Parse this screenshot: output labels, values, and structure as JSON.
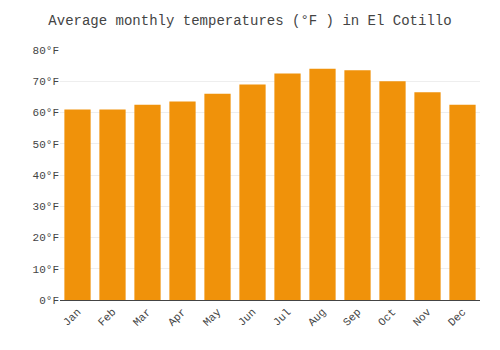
{
  "chart_data": {
    "type": "bar",
    "title": "Average monthly temperatures (°F ) in El Cotillo",
    "categories": [
      "Jan",
      "Feb",
      "Mar",
      "Apr",
      "May",
      "Jun",
      "Jul",
      "Aug",
      "Sep",
      "Oct",
      "Nov",
      "Dec"
    ],
    "values": [
      61,
      61,
      62.5,
      63.5,
      66,
      69,
      72.5,
      74,
      73.5,
      70,
      66.5,
      62.5
    ],
    "color": "#F0920A",
    "ylim": [
      0,
      80
    ],
    "yticks": [
      {
        "value": 0,
        "label": "0°F"
      },
      {
        "value": 10,
        "label": "10°F"
      },
      {
        "value": 20,
        "label": "20°F"
      },
      {
        "value": 30,
        "label": "30°F"
      },
      {
        "value": 40,
        "label": "40°F"
      },
      {
        "value": 50,
        "label": "50°F"
      },
      {
        "value": 60,
        "label": "60°F"
      },
      {
        "value": 70,
        "label": "70°F"
      },
      {
        "value": 80,
        "label": "80°F"
      }
    ],
    "grid": true
  }
}
